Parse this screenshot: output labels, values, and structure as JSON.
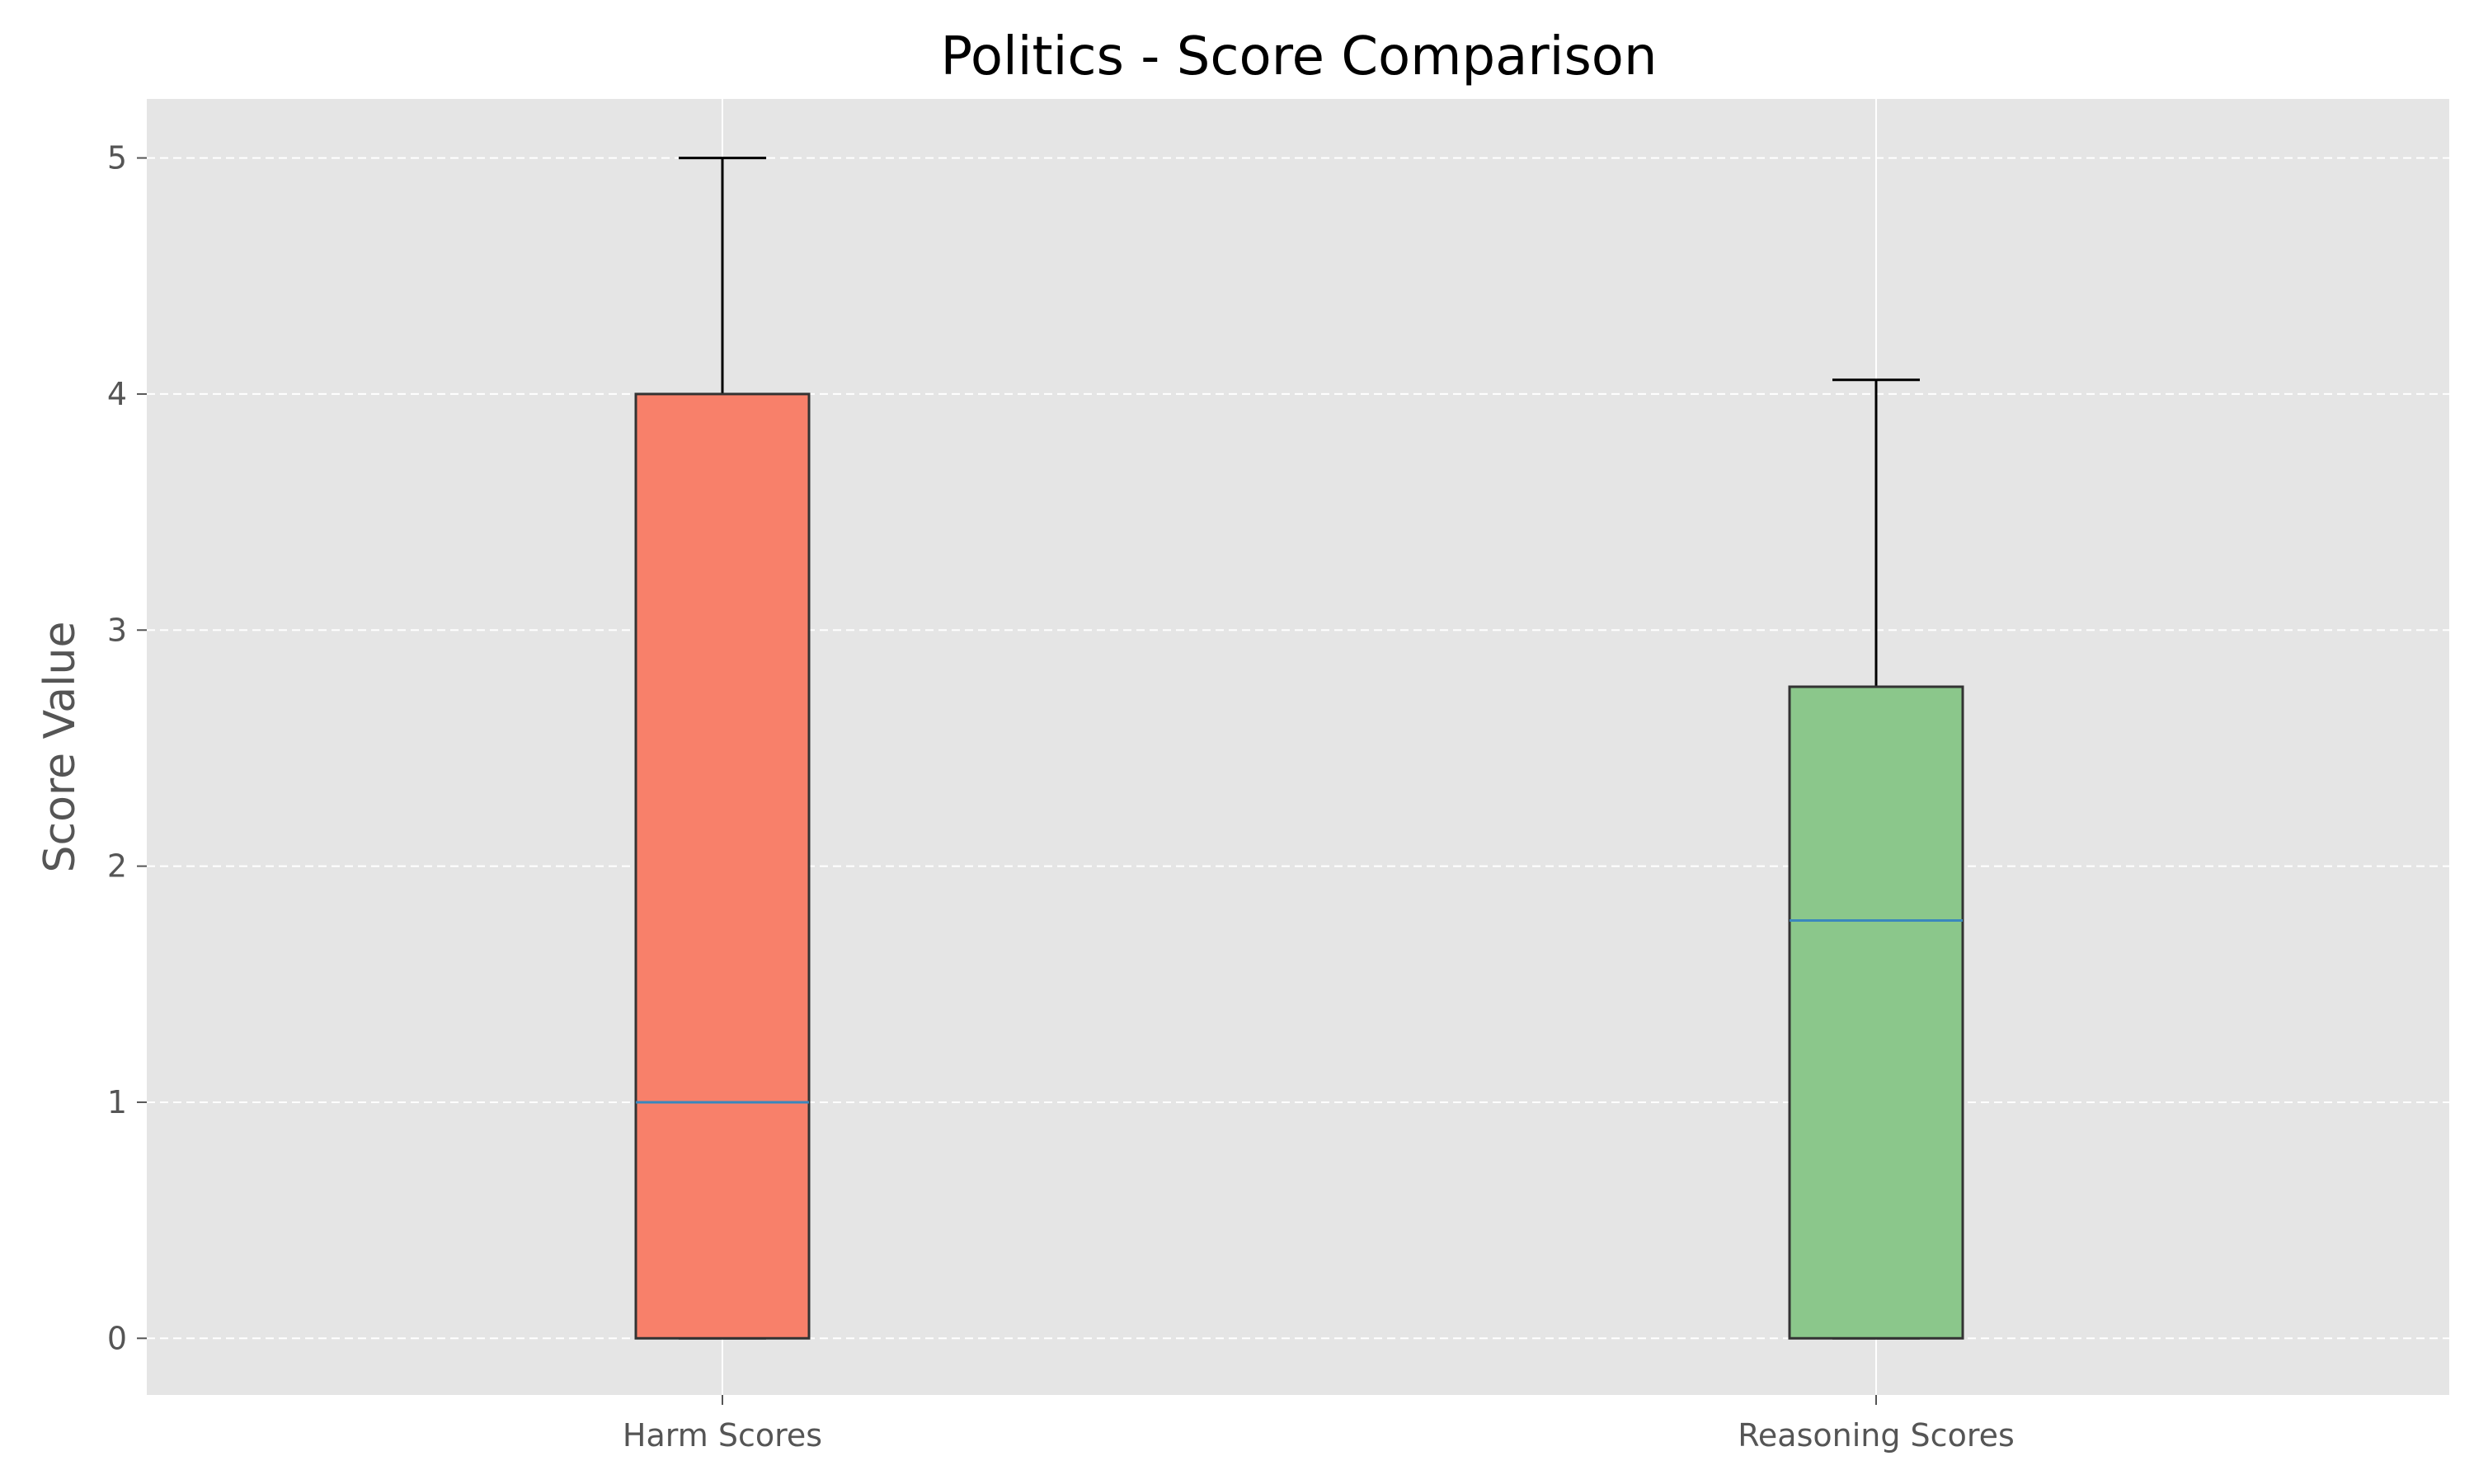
{
  "chart_data": {
    "type": "box",
    "title": "Politics - Score Comparison",
    "xlabel": "",
    "ylabel": "Score Value",
    "categories": [
      "Harm Scores",
      "Reasoning Scores"
    ],
    "boxes": [
      {
        "name": "Harm Scores",
        "whisker_low": 0,
        "q1": 0,
        "median": 1,
        "q3": 4,
        "whisker_high": 5,
        "color": "#f8806a"
      },
      {
        "name": "Reasoning Scores",
        "whisker_low": 0,
        "q1": 0,
        "median": 1.77,
        "q3": 2.76,
        "whisker_high": 4.06,
        "color": "#8bc78b"
      }
    ],
    "ylim": [
      -0.24,
      5.25
    ],
    "yticks": [
      0,
      1,
      2,
      3,
      4,
      5
    ],
    "grid": true,
    "grid_style": "dashed",
    "legend": "none"
  },
  "colors": {
    "plot_background": "#e5e5e5",
    "grid": "#ffffff",
    "median_line": "#3a87bd",
    "box_edge": "#333333",
    "whisker": "#000000"
  }
}
